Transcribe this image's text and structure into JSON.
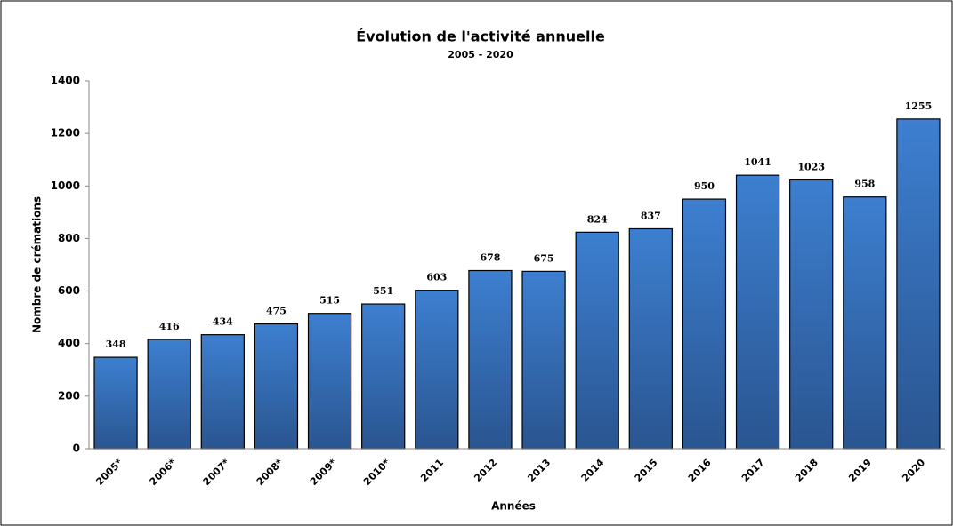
{
  "chart_data": {
    "type": "bar",
    "title": "Évolution de l'activité annuelle",
    "subtitle": "2005 - 2020",
    "x_label": "Années",
    "y_label": "Nombre de crémations",
    "categories": [
      "2005*",
      "2006*",
      "2007*",
      "2008*",
      "2009*",
      "2010*",
      "2011",
      "2012",
      "2013",
      "2014",
      "2015",
      "2016",
      "2017",
      "2018",
      "2019",
      "2020"
    ],
    "values": [
      348,
      416,
      434,
      475,
      515,
      551,
      603,
      678,
      675,
      824,
      837,
      950,
      1041,
      1023,
      958,
      1255
    ],
    "color": "#3a78c4",
    "ylim": [
      0,
      1400
    ],
    "yticks": [
      0,
      200,
      400,
      600,
      800,
      1000,
      1200,
      1400
    ]
  }
}
